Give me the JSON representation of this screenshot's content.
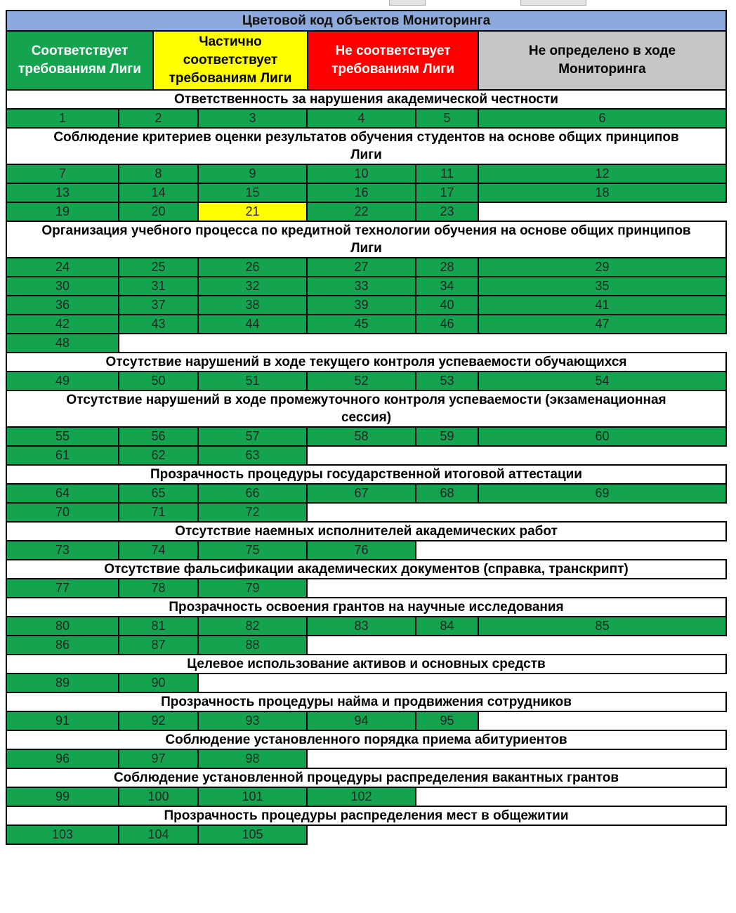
{
  "title": "Цветовой код объектов Мониторинга",
  "colors": {
    "green": "#14A44F",
    "yellow": "#FFFF00",
    "red": "#FF0000",
    "gray": "#C6C6C6",
    "header_blue": "#8EA9DB",
    "border": "#000000"
  },
  "legend": {
    "items": [
      {
        "label": "Соответствует\nтребованиям Лиги",
        "color_key": "green",
        "text_color": "#FFFFFF"
      },
      {
        "label": "Частично\nсоответствует\nтребованиям Лиги",
        "color_key": "yellow",
        "text_color": "#000000"
      },
      {
        "label": "Не соответствует\nтребованиям Лиги",
        "color_key": "red",
        "text_color": "#FFFFFF"
      },
      {
        "label": "Не определено в ходе\nМониторинга",
        "color_key": "gray",
        "text_color": "#000000"
      }
    ]
  },
  "sections": [
    {
      "header": "Ответственность за нарушения академической честности",
      "rows": [
        [
          {
            "n": 1,
            "status": "green"
          },
          {
            "n": 2,
            "status": "green"
          },
          {
            "n": 3,
            "status": "green"
          },
          {
            "n": 4,
            "status": "green"
          },
          {
            "n": 5,
            "status": "green"
          },
          {
            "n": 6,
            "status": "green"
          }
        ]
      ]
    },
    {
      "header": "Соблюдение критериев оценки результатов обучения студентов на основе общих принципов\nЛиги",
      "rows": [
        [
          {
            "n": 7,
            "status": "green"
          },
          {
            "n": 8,
            "status": "green"
          },
          {
            "n": 9,
            "status": "green"
          },
          {
            "n": 10,
            "status": "green"
          },
          {
            "n": 11,
            "status": "green"
          },
          {
            "n": 12,
            "status": "green"
          }
        ],
        [
          {
            "n": 13,
            "status": "green"
          },
          {
            "n": 14,
            "status": "green"
          },
          {
            "n": 15,
            "status": "green"
          },
          {
            "n": 16,
            "status": "green"
          },
          {
            "n": 17,
            "status": "green"
          },
          {
            "n": 18,
            "status": "green"
          }
        ],
        [
          {
            "n": 19,
            "status": "green"
          },
          {
            "n": 20,
            "status": "green"
          },
          {
            "n": 21,
            "status": "yellow"
          },
          {
            "n": 22,
            "status": "green"
          },
          {
            "n": 23,
            "status": "green"
          }
        ]
      ]
    },
    {
      "header": "Организация учебного процесса по кредитной технологии обучения на основе общих принципов\nЛиги",
      "rows": [
        [
          {
            "n": 24,
            "status": "green"
          },
          {
            "n": 25,
            "status": "green"
          },
          {
            "n": 26,
            "status": "green"
          },
          {
            "n": 27,
            "status": "green"
          },
          {
            "n": 28,
            "status": "green"
          },
          {
            "n": 29,
            "status": "green"
          }
        ],
        [
          {
            "n": 30,
            "status": "green"
          },
          {
            "n": 31,
            "status": "green"
          },
          {
            "n": 32,
            "status": "green"
          },
          {
            "n": 33,
            "status": "green"
          },
          {
            "n": 34,
            "status": "green"
          },
          {
            "n": 35,
            "status": "green"
          }
        ],
        [
          {
            "n": 36,
            "status": "green"
          },
          {
            "n": 37,
            "status": "green"
          },
          {
            "n": 38,
            "status": "green"
          },
          {
            "n": 39,
            "status": "green"
          },
          {
            "n": 40,
            "status": "green"
          },
          {
            "n": 41,
            "status": "green"
          }
        ],
        [
          {
            "n": 42,
            "status": "green"
          },
          {
            "n": 43,
            "status": "green"
          },
          {
            "n": 44,
            "status": "green"
          },
          {
            "n": 45,
            "status": "green"
          },
          {
            "n": 46,
            "status": "green"
          },
          {
            "n": 47,
            "status": "green"
          }
        ],
        [
          {
            "n": 48,
            "status": "green"
          }
        ]
      ]
    },
    {
      "header": "Отсутствие нарушений в ходе текущего контроля успеваемости обучающихся",
      "rows": [
        [
          {
            "n": 49,
            "status": "green"
          },
          {
            "n": 50,
            "status": "green"
          },
          {
            "n": 51,
            "status": "green"
          },
          {
            "n": 52,
            "status": "green"
          },
          {
            "n": 53,
            "status": "green"
          },
          {
            "n": 54,
            "status": "green"
          }
        ]
      ]
    },
    {
      "header": "Отсутствие нарушений в ходе промежуточного контроля успеваемости (экзаменационная\nсессия)",
      "rows": [
        [
          {
            "n": 55,
            "status": "green"
          },
          {
            "n": 56,
            "status": "green"
          },
          {
            "n": 57,
            "status": "green"
          },
          {
            "n": 58,
            "status": "green"
          },
          {
            "n": 59,
            "status": "green"
          },
          {
            "n": 60,
            "status": "green"
          }
        ],
        [
          {
            "n": 61,
            "status": "green"
          },
          {
            "n": 62,
            "status": "green"
          },
          {
            "n": 63,
            "status": "green"
          }
        ]
      ]
    },
    {
      "header": "Прозрачность процедуры государственной итоговой аттестации",
      "rows": [
        [
          {
            "n": 64,
            "status": "green"
          },
          {
            "n": 65,
            "status": "green"
          },
          {
            "n": 66,
            "status": "green"
          },
          {
            "n": 67,
            "status": "green"
          },
          {
            "n": 68,
            "status": "green"
          },
          {
            "n": 69,
            "status": "green"
          }
        ],
        [
          {
            "n": 70,
            "status": "green"
          },
          {
            "n": 71,
            "status": "green"
          },
          {
            "n": 72,
            "status": "green"
          }
        ]
      ]
    },
    {
      "header": "Отсутствие наемных исполнителей академических работ",
      "rows": [
        [
          {
            "n": 73,
            "status": "green"
          },
          {
            "n": 74,
            "status": "green"
          },
          {
            "n": 75,
            "status": "green"
          },
          {
            "n": 76,
            "status": "green"
          }
        ]
      ]
    },
    {
      "header": "Отсутствие фальсификации академических документов (справка, транскрипт)",
      "rows": [
        [
          {
            "n": 77,
            "status": "green"
          },
          {
            "n": 78,
            "status": "green"
          },
          {
            "n": 79,
            "status": "green"
          }
        ]
      ]
    },
    {
      "header": "Прозрачность освоения грантов на научные исследования",
      "rows": [
        [
          {
            "n": 80,
            "status": "green"
          },
          {
            "n": 81,
            "status": "green"
          },
          {
            "n": 82,
            "status": "green"
          },
          {
            "n": 83,
            "status": "green"
          },
          {
            "n": 84,
            "status": "green"
          },
          {
            "n": 85,
            "status": "green"
          }
        ],
        [
          {
            "n": 86,
            "status": "green"
          },
          {
            "n": 87,
            "status": "green"
          },
          {
            "n": 88,
            "status": "green"
          }
        ]
      ]
    },
    {
      "header": "Целевое использование активов и основных средств",
      "rows": [
        [
          {
            "n": 89,
            "status": "green"
          },
          {
            "n": 90,
            "status": "green"
          }
        ]
      ]
    },
    {
      "header": "Прозрачность процедуры найма и продвижения сотрудников",
      "rows": [
        [
          {
            "n": 91,
            "status": "green"
          },
          {
            "n": 92,
            "status": "green"
          },
          {
            "n": 93,
            "status": "green"
          },
          {
            "n": 94,
            "status": "green"
          },
          {
            "n": 95,
            "status": "green"
          }
        ]
      ]
    },
    {
      "header": "Соблюдение установленного порядка приема абитуриентов",
      "rows": [
        [
          {
            "n": 96,
            "status": "green"
          },
          {
            "n": 97,
            "status": "green"
          },
          {
            "n": 98,
            "status": "green"
          }
        ]
      ]
    },
    {
      "header": "Соблюдение установленной процедуры распределения вакантных грантов",
      "rows": [
        [
          {
            "n": 99,
            "status": "green"
          },
          {
            "n": 100,
            "status": "green"
          },
          {
            "n": 101,
            "status": "green"
          },
          {
            "n": 102,
            "status": "green"
          }
        ]
      ]
    },
    {
      "header": "Прозрачность процедуры распределения мест в общежитии",
      "rows": [
        [
          {
            "n": 103,
            "status": "green"
          },
          {
            "n": 104,
            "status": "green"
          },
          {
            "n": 105,
            "status": "green"
          }
        ]
      ]
    }
  ]
}
